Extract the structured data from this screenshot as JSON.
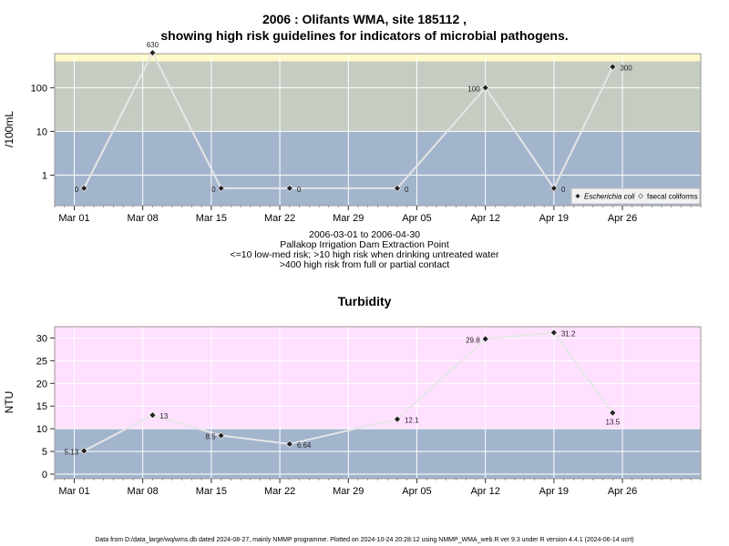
{
  "page": {
    "colors": {
      "zone_low": "#a3b4cd",
      "zone_mid": "#c5ccc2",
      "zone_high": "#fff8c8",
      "turb_high": "#ffe0ff",
      "grid": "#ffffff",
      "line": "#e6e6e6",
      "marker": "#222222"
    },
    "footer": "Data from D:/data_large/wq/wms.db dated 2024-08-27, mainly NMMP programme. Plotted on 2024-10-24 20:28:12 using NMMP_WMA_web.R ver 9.3 under R version 4.4.1 (2024-06-14 ucrt)"
  },
  "chart_data": [
    {
      "type": "line",
      "title_line1": "2006 : Olifants WMA, site 185112 ,",
      "title_line2": "showing high risk guidelines for indicators of microbial pathogens.",
      "ylabel": "/100mL",
      "yscale": "log",
      "ylim": [
        0.2,
        600
      ],
      "yticks": [
        1,
        10,
        100
      ],
      "ytick_labels": [
        "1",
        "10",
        "100"
      ],
      "x_ticks": [
        "Mar 01",
        "Mar 08",
        "Mar 15",
        "Mar 22",
        "Mar 29",
        "Apr 05",
        "Apr 12",
        "Apr 19",
        "Apr 26"
      ],
      "x_tick_dates": [
        "2006-03-01",
        "2006-03-08",
        "2006-03-15",
        "2006-03-22",
        "2006-03-29",
        "2006-04-05",
        "2006-04-12",
        "2006-04-19",
        "2006-04-26"
      ],
      "xlim": [
        "2006-02-27",
        "2006-05-04"
      ],
      "zones": [
        {
          "from": 0.2,
          "to": 10,
          "color": "#a3b4cd"
        },
        {
          "from": 10,
          "to": 400,
          "color": "#c5ccc2"
        },
        {
          "from": 400,
          "to": 600,
          "color": "#fff8c8"
        }
      ],
      "series": [
        {
          "name": "Escherichia coli",
          "marker": "diamond",
          "points": [
            {
              "x": "2006-03-02",
              "y": 0.5,
              "label": "0"
            },
            {
              "x": "2006-03-09",
              "y": 630,
              "label": "630"
            },
            {
              "x": "2006-03-16",
              "y": 0.5,
              "label": "0"
            },
            {
              "x": "2006-03-23",
              "y": 0.5,
              "label": "0"
            },
            {
              "x": "2006-04-03",
              "y": 0.5,
              "label": "0"
            },
            {
              "x": "2006-04-12",
              "y": 100,
              "label": "100"
            },
            {
              "x": "2006-04-19",
              "y": 0.5,
              "label": "0"
            },
            {
              "x": "2006-04-25",
              "y": 300,
              "label": "300"
            }
          ]
        }
      ],
      "legend": {
        "position": "bottom-right",
        "items": [
          "Escherichia coli",
          "faecal coliforms"
        ]
      },
      "subtitle": [
        "2006-03-01 to 2006-04-30",
        "Pallakop Irrigation Dam Extraction Point",
        "<=10 low-med risk; >10 high risk when drinking untreated water",
        ">400 high risk from full or partial contact"
      ]
    },
    {
      "type": "line",
      "title": "Turbidity",
      "ylabel": "NTU",
      "ylim": [
        -1,
        32.5
      ],
      "yticks": [
        0,
        5,
        10,
        15,
        20,
        25,
        30
      ],
      "ytick_labels": [
        "0",
        "5",
        "10",
        "15",
        "20",
        "25",
        "30"
      ],
      "x_ticks": [
        "Mar 01",
        "Mar 08",
        "Mar 15",
        "Mar 22",
        "Mar 29",
        "Apr 05",
        "Apr 12",
        "Apr 19",
        "Apr 26"
      ],
      "x_tick_dates": [
        "2006-03-01",
        "2006-03-08",
        "2006-03-15",
        "2006-03-22",
        "2006-03-29",
        "2006-04-05",
        "2006-04-12",
        "2006-04-19",
        "2006-04-26"
      ],
      "xlim": [
        "2006-02-27",
        "2006-05-04"
      ],
      "zones": [
        {
          "from": -1,
          "to": 10,
          "color": "#a3b4cd"
        },
        {
          "from": 10,
          "to": 32.5,
          "color": "#ffe0ff"
        }
      ],
      "series": [
        {
          "name": "Turbidity",
          "marker": "diamond",
          "points": [
            {
              "x": "2006-03-02",
              "y": 5.13,
              "label": "5.13"
            },
            {
              "x": "2006-03-09",
              "y": 13,
              "label": "13"
            },
            {
              "x": "2006-03-16",
              "y": 8.5,
              "label": "8.5"
            },
            {
              "x": "2006-03-23",
              "y": 6.64,
              "label": "6.64"
            },
            {
              "x": "2006-04-03",
              "y": 12.1,
              "label": "12.1"
            },
            {
              "x": "2006-04-12",
              "y": 29.8,
              "label": "29.8"
            },
            {
              "x": "2006-04-19",
              "y": 31.2,
              "label": "31.2"
            },
            {
              "x": "2006-04-25",
              "y": 13.5,
              "label": "13.5"
            }
          ]
        }
      ]
    }
  ]
}
